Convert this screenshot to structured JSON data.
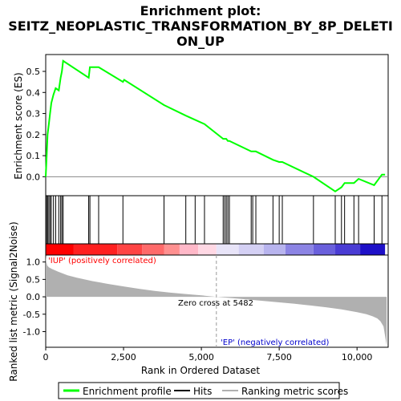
{
  "title_line1": "Enrichment plot:",
  "title_line2": "SEITZ_NEOPLASTIC_TRANSFORMATION_BY_8P_DELETI",
  "title_line3": "ON_UP",
  "colors": {
    "profile": "#00ff00",
    "hits": "#000000",
    "metric": "#b0b0b0",
    "pos_label": "#ff0000",
    "neg_label": "#0000cc"
  },
  "chart_data": [
    {
      "type": "line",
      "name": "enrichment-profile",
      "ylabel": "Enrichment score (ES)",
      "xlim": [
        0,
        11000
      ],
      "ylim": [
        -0.09,
        0.58
      ],
      "yticks": [
        0.0,
        0.1,
        0.2,
        0.3,
        0.4,
        0.5
      ],
      "ytick_labels": [
        "0.0",
        "0.1",
        "0.2",
        "0.3",
        "0.4",
        "0.5"
      ],
      "series": [
        {
          "name": "Enrichment profile",
          "x": [
            0,
            30,
            60,
            100,
            140,
            180,
            250,
            320,
            420,
            480,
            520,
            560,
            1380,
            1420,
            1700,
            2480,
            2520,
            3800,
            4500,
            4800,
            5100,
            5700,
            5750,
            5800,
            5850,
            5900,
            6600,
            6650,
            6700,
            6750,
            7300,
            7500,
            7600,
            8600,
            9300,
            9500,
            9600,
            9900,
            10050,
            10550,
            10800,
            10900
          ],
          "y": [
            0.0,
            0.1,
            0.2,
            0.25,
            0.3,
            0.35,
            0.39,
            0.42,
            0.41,
            0.47,
            0.5,
            0.55,
            0.47,
            0.52,
            0.52,
            0.45,
            0.46,
            0.34,
            0.29,
            0.27,
            0.25,
            0.18,
            0.18,
            0.18,
            0.17,
            0.17,
            0.12,
            0.12,
            0.12,
            0.12,
            0.08,
            0.07,
            0.07,
            0.0,
            -0.07,
            -0.05,
            -0.03,
            -0.03,
            -0.01,
            -0.04,
            0.01,
            0.01
          ]
        }
      ]
    },
    {
      "type": "scatter",
      "name": "hits",
      "xlim": [
        0,
        11000
      ],
      "x": [
        30,
        60,
        100,
        140,
        180,
        250,
        320,
        420,
        480,
        520,
        560,
        1380,
        1420,
        1700,
        2480,
        3800,
        4500,
        4800,
        5100,
        5700,
        5750,
        5800,
        5850,
        5900,
        6600,
        6650,
        6750,
        7300,
        7500,
        7600,
        8600,
        9300,
        9500,
        9600,
        9900,
        10050,
        10550,
        10800
      ]
    },
    {
      "type": "area",
      "name": "ranked-list-metric",
      "xlabel": "Rank in Ordered Dataset",
      "ylabel": "Ranked list metric (Signal2Noise)",
      "xlim": [
        0,
        11000
      ],
      "ylim": [
        -1.45,
        1.2
      ],
      "xticks": [
        0,
        2500,
        5000,
        7500,
        10000
      ],
      "xtick_labels": [
        "0",
        "2,500",
        "5,000",
        "7,500",
        "10,000"
      ],
      "yticks": [
        -1.0,
        -0.5,
        0.0,
        0.5,
        1.0
      ],
      "ytick_labels": [
        "-1.0",
        "-0.5",
        "0.0",
        "0.5",
        "1.0"
      ],
      "x": [
        0,
        20,
        50,
        100,
        200,
        400,
        700,
        1000,
        1500,
        2000,
        2500,
        3000,
        3500,
        4000,
        4500,
        5000,
        5482,
        6000,
        6500,
        7000,
        7500,
        8000,
        8500,
        9000,
        9500,
        10000,
        10300,
        10500,
        10650,
        10750,
        10850,
        10950
      ],
      "y": [
        1.2,
        1.0,
        0.9,
        0.85,
        0.8,
        0.72,
        0.62,
        0.55,
        0.45,
        0.37,
        0.3,
        0.23,
        0.17,
        0.12,
        0.08,
        0.04,
        0.0,
        -0.04,
        -0.08,
        -0.12,
        -0.16,
        -0.2,
        -0.25,
        -0.3,
        -0.36,
        -0.44,
        -0.5,
        -0.56,
        -0.62,
        -0.7,
        -0.85,
        -1.4
      ]
    }
  ],
  "annotations": {
    "pos_label": "'IUP' (positively correlated)",
    "neg_label": "'EP' (negatively correlated)",
    "zero_cross": "Zero cross at 5482",
    "zero_cross_rank": 5482
  },
  "legend": {
    "items": [
      {
        "label": "Enrichment profile",
        "type": "line-green"
      },
      {
        "label": "Hits",
        "type": "line-black"
      },
      {
        "label": "Ranking metric scores",
        "type": "line-gray"
      }
    ]
  },
  "heatmap": {
    "bands": [
      {
        "from": 0,
        "to": 900,
        "color": "#ff0000"
      },
      {
        "from": 900,
        "to": 2300,
        "color": "#ff2020"
      },
      {
        "from": 2300,
        "to": 3100,
        "color": "#ff4444"
      },
      {
        "from": 3100,
        "to": 3800,
        "color": "#ff6a6a"
      },
      {
        "from": 3800,
        "to": 4300,
        "color": "#ff9090"
      },
      {
        "from": 4300,
        "to": 4900,
        "color": "#ffb8c8"
      },
      {
        "from": 4900,
        "to": 5482,
        "color": "#ffd8e4"
      },
      {
        "from": 5482,
        "to": 6200,
        "color": "#e8e4f8"
      },
      {
        "from": 6200,
        "to": 7000,
        "color": "#d4d0f4"
      },
      {
        "from": 7000,
        "to": 7700,
        "color": "#b8b4ee"
      },
      {
        "from": 7700,
        "to": 8600,
        "color": "#8c84e4"
      },
      {
        "from": 8600,
        "to": 9300,
        "color": "#6a60dc"
      },
      {
        "from": 9300,
        "to": 10100,
        "color": "#4a3cd4"
      },
      {
        "from": 10100,
        "to": 10900,
        "color": "#1e10c8"
      }
    ]
  }
}
